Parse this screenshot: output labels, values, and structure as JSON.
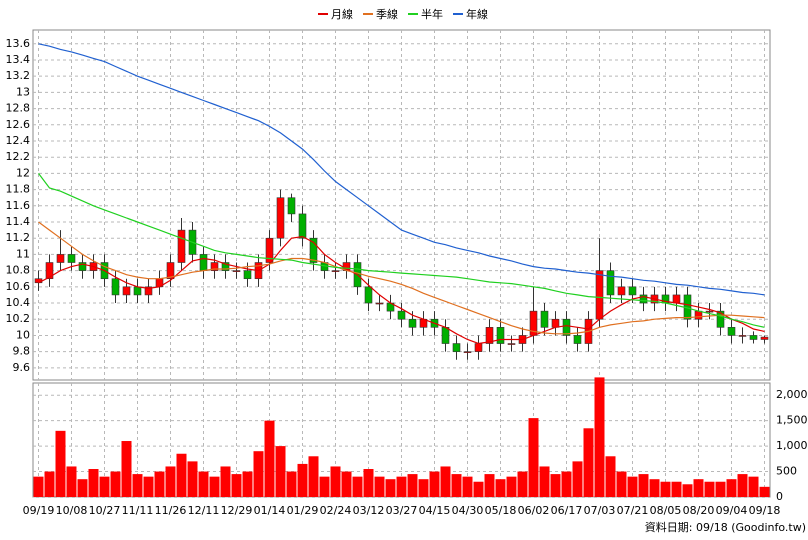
{
  "chart_data": [
    {
      "type": "candlestick",
      "legend": "top",
      "grid": true,
      "up_color": "#ff0000",
      "down_color": "#00b000",
      "categories": [
        "09/19",
        null,
        null,
        "10/08",
        null,
        null,
        "10/27",
        null,
        null,
        "11/11",
        null,
        null,
        "11/26",
        null,
        null,
        "12/11",
        null,
        null,
        "12/29",
        null,
        null,
        "01/14",
        null,
        null,
        "01/29",
        null,
        null,
        "02/24",
        null,
        null,
        "03/12",
        null,
        null,
        "03/27",
        null,
        null,
        "04/15",
        null,
        null,
        "04/30",
        null,
        null,
        "05/18",
        null,
        null,
        "06/02",
        null,
        null,
        "06/17",
        null,
        null,
        "07/03",
        null,
        null,
        "07/21",
        null,
        null,
        "08/05",
        null,
        null,
        "08/20",
        null,
        null,
        "09/04",
        null,
        null,
        "09/18"
      ],
      "open": [
        10.65,
        10.7,
        10.9,
        11.0,
        10.9,
        10.8,
        10.9,
        10.7,
        10.5,
        10.6,
        10.5,
        10.6,
        10.7,
        10.9,
        11.3,
        11.0,
        10.8,
        10.9,
        10.8,
        10.8,
        10.7,
        10.9,
        11.2,
        11.7,
        11.5,
        11.2,
        10.9,
        10.8,
        10.8,
        10.9,
        10.6,
        10.4,
        10.4,
        10.3,
        10.2,
        10.1,
        10.2,
        10.1,
        9.9,
        9.8,
        9.8,
        9.9,
        10.1,
        9.9,
        9.9,
        10.0,
        10.3,
        10.1,
        10.2,
        10.0,
        9.9,
        10.2,
        10.8,
        10.5,
        10.6,
        10.5,
        10.4,
        10.5,
        10.4,
        10.5,
        10.2,
        10.3,
        10.3,
        10.1,
        10.0,
        10.0,
        9.95
      ],
      "high": [
        10.8,
        11.0,
        11.3,
        11.1,
        11.0,
        11.0,
        11.0,
        10.8,
        10.7,
        10.7,
        10.7,
        10.8,
        11.0,
        11.45,
        11.4,
        11.1,
        11.0,
        11.0,
        10.9,
        10.9,
        11.0,
        11.3,
        11.8,
        11.75,
        11.6,
        11.3,
        11.0,
        10.9,
        11.0,
        11.0,
        10.7,
        10.5,
        10.5,
        10.4,
        10.3,
        10.3,
        10.3,
        10.2,
        10.0,
        9.9,
        10.0,
        10.2,
        10.2,
        10.0,
        10.1,
        10.6,
        10.4,
        10.3,
        10.3,
        10.1,
        10.3,
        11.2,
        10.9,
        10.7,
        10.7,
        10.6,
        10.6,
        10.6,
        10.6,
        10.6,
        10.4,
        10.4,
        10.4,
        10.2,
        10.1,
        10.05,
        10.0
      ],
      "low": [
        10.55,
        10.6,
        10.8,
        10.8,
        10.7,
        10.7,
        10.6,
        10.4,
        10.4,
        10.4,
        10.4,
        10.5,
        10.6,
        10.8,
        10.9,
        10.7,
        10.7,
        10.7,
        10.7,
        10.6,
        10.6,
        10.8,
        11.1,
        11.4,
        11.1,
        10.8,
        10.7,
        10.7,
        10.7,
        10.5,
        10.3,
        10.3,
        10.2,
        10.1,
        10.0,
        10.0,
        10.0,
        9.8,
        9.7,
        9.7,
        9.7,
        9.8,
        9.8,
        9.8,
        9.8,
        9.9,
        10.0,
        10.0,
        9.9,
        9.8,
        9.8,
        10.1,
        10.4,
        10.4,
        10.4,
        10.3,
        10.3,
        10.3,
        10.3,
        10.1,
        10.1,
        10.2,
        10.0,
        9.9,
        9.9,
        9.9,
        9.9
      ],
      "close": [
        10.7,
        10.9,
        11.0,
        10.9,
        10.8,
        10.9,
        10.7,
        10.5,
        10.6,
        10.5,
        10.6,
        10.7,
        10.9,
        11.3,
        11.0,
        10.8,
        10.9,
        10.8,
        10.8,
        10.7,
        10.9,
        11.2,
        11.7,
        11.5,
        11.2,
        10.9,
        10.8,
        10.8,
        10.9,
        10.6,
        10.4,
        10.4,
        10.3,
        10.2,
        10.1,
        10.2,
        10.1,
        9.9,
        9.8,
        9.8,
        9.9,
        10.1,
        9.9,
        9.9,
        10.0,
        10.3,
        10.1,
        10.2,
        10.0,
        9.9,
        10.2,
        10.8,
        10.5,
        10.6,
        10.5,
        10.4,
        10.5,
        10.4,
        10.5,
        10.2,
        10.3,
        10.3,
        10.1,
        10.0,
        10.0,
        9.95,
        9.98
      ],
      "series": [
        {
          "name": "月線",
          "color": "#e00000",
          "values": [
            10.65,
            10.72,
            10.8,
            10.85,
            10.88,
            10.85,
            10.8,
            10.72,
            10.65,
            10.6,
            10.58,
            10.6,
            10.68,
            10.8,
            10.92,
            10.95,
            10.93,
            10.88,
            10.85,
            10.82,
            10.8,
            10.88,
            11.05,
            11.2,
            11.22,
            11.15,
            11.0,
            10.9,
            10.82,
            10.75,
            10.62,
            10.5,
            10.4,
            10.33,
            10.25,
            10.2,
            10.15,
            10.1,
            10.02,
            9.95,
            9.9,
            9.92,
            9.95,
            9.95,
            9.95,
            10.0,
            10.05,
            10.1,
            10.12,
            10.1,
            10.08,
            10.2,
            10.3,
            10.38,
            10.45,
            10.48,
            10.45,
            10.42,
            10.4,
            10.38,
            10.35,
            10.32,
            10.28,
            10.2,
            10.15,
            10.08,
            10.05
          ]
        },
        {
          "name": "季線",
          "color": "#e07020",
          "values": [
            11.4,
            11.3,
            11.2,
            11.1,
            11.0,
            10.92,
            10.85,
            10.8,
            10.75,
            10.72,
            10.7,
            10.7,
            10.72,
            10.75,
            10.78,
            10.8,
            10.82,
            10.82,
            10.83,
            10.85,
            10.86,
            10.88,
            10.92,
            10.95,
            10.95,
            10.93,
            10.9,
            10.85,
            10.8,
            10.77,
            10.73,
            10.7,
            10.67,
            10.63,
            10.58,
            10.52,
            10.47,
            10.42,
            10.37,
            10.32,
            10.27,
            10.22,
            10.17,
            10.12,
            10.08,
            10.05,
            10.03,
            10.02,
            10.02,
            10.03,
            10.05,
            10.1,
            10.13,
            10.15,
            10.17,
            10.18,
            10.2,
            10.21,
            10.22,
            10.22,
            10.23,
            10.24,
            10.25,
            10.25,
            10.24,
            10.23,
            10.22
          ]
        },
        {
          "name": "半年",
          "color": "#20d020",
          "values": [
            12.0,
            11.82,
            11.78,
            11.72,
            11.66,
            11.6,
            11.55,
            11.5,
            11.45,
            11.4,
            11.35,
            11.3,
            11.25,
            11.2,
            11.15,
            11.1,
            11.05,
            11.02,
            11.0,
            10.98,
            10.96,
            10.95,
            10.94,
            10.93,
            10.9,
            10.88,
            10.86,
            10.84,
            10.83,
            10.82,
            10.8,
            10.79,
            10.78,
            10.77,
            10.76,
            10.75,
            10.74,
            10.73,
            10.72,
            10.7,
            10.68,
            10.66,
            10.65,
            10.64,
            10.62,
            10.6,
            10.58,
            10.55,
            10.52,
            10.5,
            10.48,
            10.47,
            10.46,
            10.45,
            10.44,
            10.43,
            10.42,
            10.4,
            10.37,
            10.34,
            10.3,
            10.27,
            10.24,
            10.2,
            10.17,
            10.13,
            10.1
          ]
        },
        {
          "name": "年線",
          "color": "#2060d0",
          "values": [
            13.6,
            13.57,
            13.53,
            13.5,
            13.46,
            13.42,
            13.38,
            13.32,
            13.26,
            13.2,
            13.15,
            13.1,
            13.05,
            13.0,
            12.95,
            12.9,
            12.85,
            12.8,
            12.75,
            12.7,
            12.65,
            12.58,
            12.5,
            12.4,
            12.3,
            12.17,
            12.03,
            11.9,
            11.8,
            11.7,
            11.6,
            11.5,
            11.4,
            11.3,
            11.25,
            11.2,
            11.15,
            11.12,
            11.08,
            11.05,
            11.02,
            10.98,
            10.95,
            10.92,
            10.88,
            10.85,
            10.83,
            10.82,
            10.8,
            10.78,
            10.77,
            10.75,
            10.73,
            10.72,
            10.7,
            10.68,
            10.67,
            10.65,
            10.63,
            10.62,
            10.6,
            10.58,
            10.57,
            10.55,
            10.53,
            10.52,
            10.5
          ]
        }
      ],
      "ylim": [
        9.45,
        13.77
      ],
      "yticks": [
        9.6,
        9.8,
        10,
        10.2,
        10.4,
        10.6,
        10.8,
        11,
        11.2,
        11.4,
        11.6,
        11.8,
        12,
        12.2,
        12.4,
        12.6,
        12.8,
        13,
        13.2,
        13.4,
        13.6
      ],
      "footnote": "資料日期: 09/18 (Goodinfo.tw)"
    },
    {
      "type": "bar",
      "color": "#ff0000",
      "grid": true,
      "values": [
        400,
        500,
        1300,
        600,
        350,
        550,
        400,
        500,
        1100,
        450,
        400,
        500,
        600,
        850,
        700,
        500,
        400,
        600,
        450,
        500,
        900,
        1500,
        1000,
        500,
        650,
        800,
        400,
        600,
        500,
        400,
        550,
        400,
        350,
        400,
        450,
        350,
        500,
        600,
        450,
        400,
        300,
        450,
        350,
        400,
        500,
        1550,
        600,
        450,
        500,
        700,
        1350,
        2350,
        800,
        500,
        400,
        450,
        350,
        300,
        300,
        250,
        350,
        300,
        300,
        350,
        450,
        400,
        200
      ],
      "ylim": [
        0,
        2240
      ],
      "yticks": [
        0,
        500,
        {
          "value": 1000,
          "label": "1,000"
        },
        {
          "value": 1500,
          "label": "1,500"
        },
        {
          "value": 2000,
          "label": "2,000"
        }
      ]
    }
  ]
}
